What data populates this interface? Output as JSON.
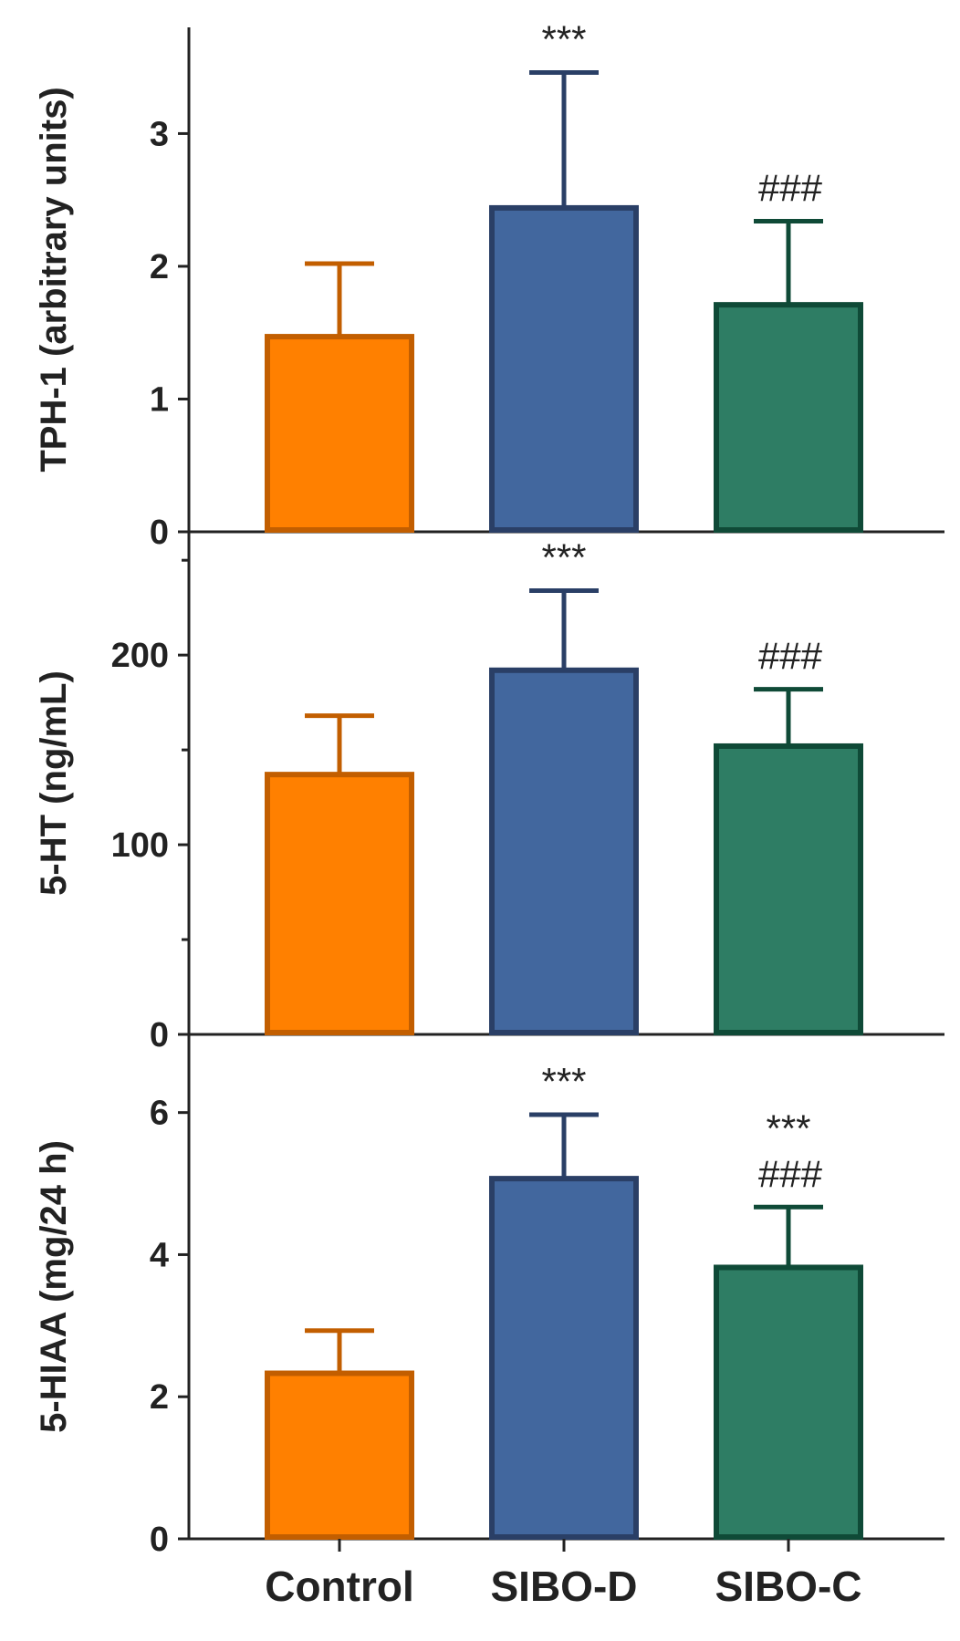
{
  "chart_data": [
    {
      "type": "bar",
      "title": "",
      "xlabel": "",
      "ylabel": "TPH-1 (arbitrary units)",
      "categories": [
        "Control",
        "SIBO-D",
        "SIBO-C"
      ],
      "values": [
        1.47,
        2.44,
        1.71
      ],
      "errors": [
        0.55,
        1.02,
        0.63
      ],
      "annotations": [
        "",
        "***",
        "###"
      ],
      "ylim": [
        0,
        3.8
      ],
      "yticks": [
        0,
        1,
        2,
        3
      ],
      "ytick_labels": [
        "0",
        "1",
        "2",
        "3"
      ],
      "minor_yticks": []
    },
    {
      "type": "bar",
      "title": "",
      "xlabel": "",
      "ylabel": "5-HT (ng/mL)",
      "categories": [
        "Control",
        "SIBO-D",
        "SIBO-C"
      ],
      "values": [
        137,
        192,
        152
      ],
      "errors": [
        31,
        42,
        30
      ],
      "annotations": [
        "",
        "***",
        "###"
      ],
      "ylim": [
        0,
        265
      ],
      "yticks": [
        0,
        100,
        200
      ],
      "ytick_labels": [
        "0",
        "100",
        "200"
      ],
      "minor_yticks": [
        50,
        150,
        250
      ]
    },
    {
      "type": "bar",
      "title": "",
      "xlabel": "",
      "ylabel": "5-HIAA (mg/24 h)",
      "categories": [
        "Control",
        "SIBO-D",
        "SIBO-C"
      ],
      "values": [
        2.33,
        5.07,
        3.82
      ],
      "errors": [
        0.6,
        0.9,
        0.85
      ],
      "annotations": [
        "",
        "***",
        "***\n###"
      ],
      "ylim": [
        0,
        7.1
      ],
      "yticks": [
        0,
        2,
        4,
        6
      ],
      "ytick_labels": [
        "0",
        "2",
        "4",
        "6"
      ],
      "minor_yticks": []
    }
  ],
  "bar_colors": {
    "fill": [
      "#ff8000",
      "#42679e",
      "#2e7d64"
    ],
    "edge": [
      "#c25e00",
      "#2a3f66",
      "#0f4a37"
    ]
  }
}
